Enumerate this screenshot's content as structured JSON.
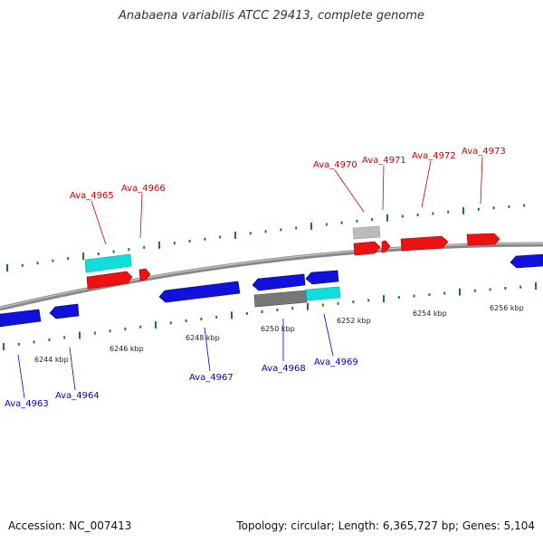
{
  "title": "Anabaena variabilis ATCC 29413, complete genome",
  "footer": {
    "accession": "Accession: NC_007413",
    "summary": "Topology: circular; Length: 6,365,727 bp; Genes: 5,104"
  },
  "colors": {
    "forward_gene": "#ee1111",
    "reverse_gene": "#1111dd",
    "forward_other": "#11dddd",
    "reverse_other": "#777777",
    "pseudo": "#bbbbbb",
    "tick": "#227722",
    "backbone": "#888888",
    "label_forward": "#cc0000",
    "label_reverse": "#0000cc"
  },
  "scale_labels": [
    "6244 kbp",
    "6246 kbp",
    "6248 kbp",
    "6250 kbp",
    "6252 kbp",
    "6254 kbp",
    "6256 kbp"
  ],
  "genes_forward": [
    {
      "name": "Ava_4965"
    },
    {
      "name": "Ava_4966"
    },
    {
      "name": "Ava_4970"
    },
    {
      "name": "Ava_4971"
    },
    {
      "name": "Ava_4972"
    },
    {
      "name": "Ava_4973"
    }
  ],
  "genes_reverse": [
    {
      "name": "Ava_4963"
    },
    {
      "name": "Ava_4964"
    },
    {
      "name": "Ava_4967"
    },
    {
      "name": "Ava_4968"
    },
    {
      "name": "Ava_4969"
    }
  ]
}
